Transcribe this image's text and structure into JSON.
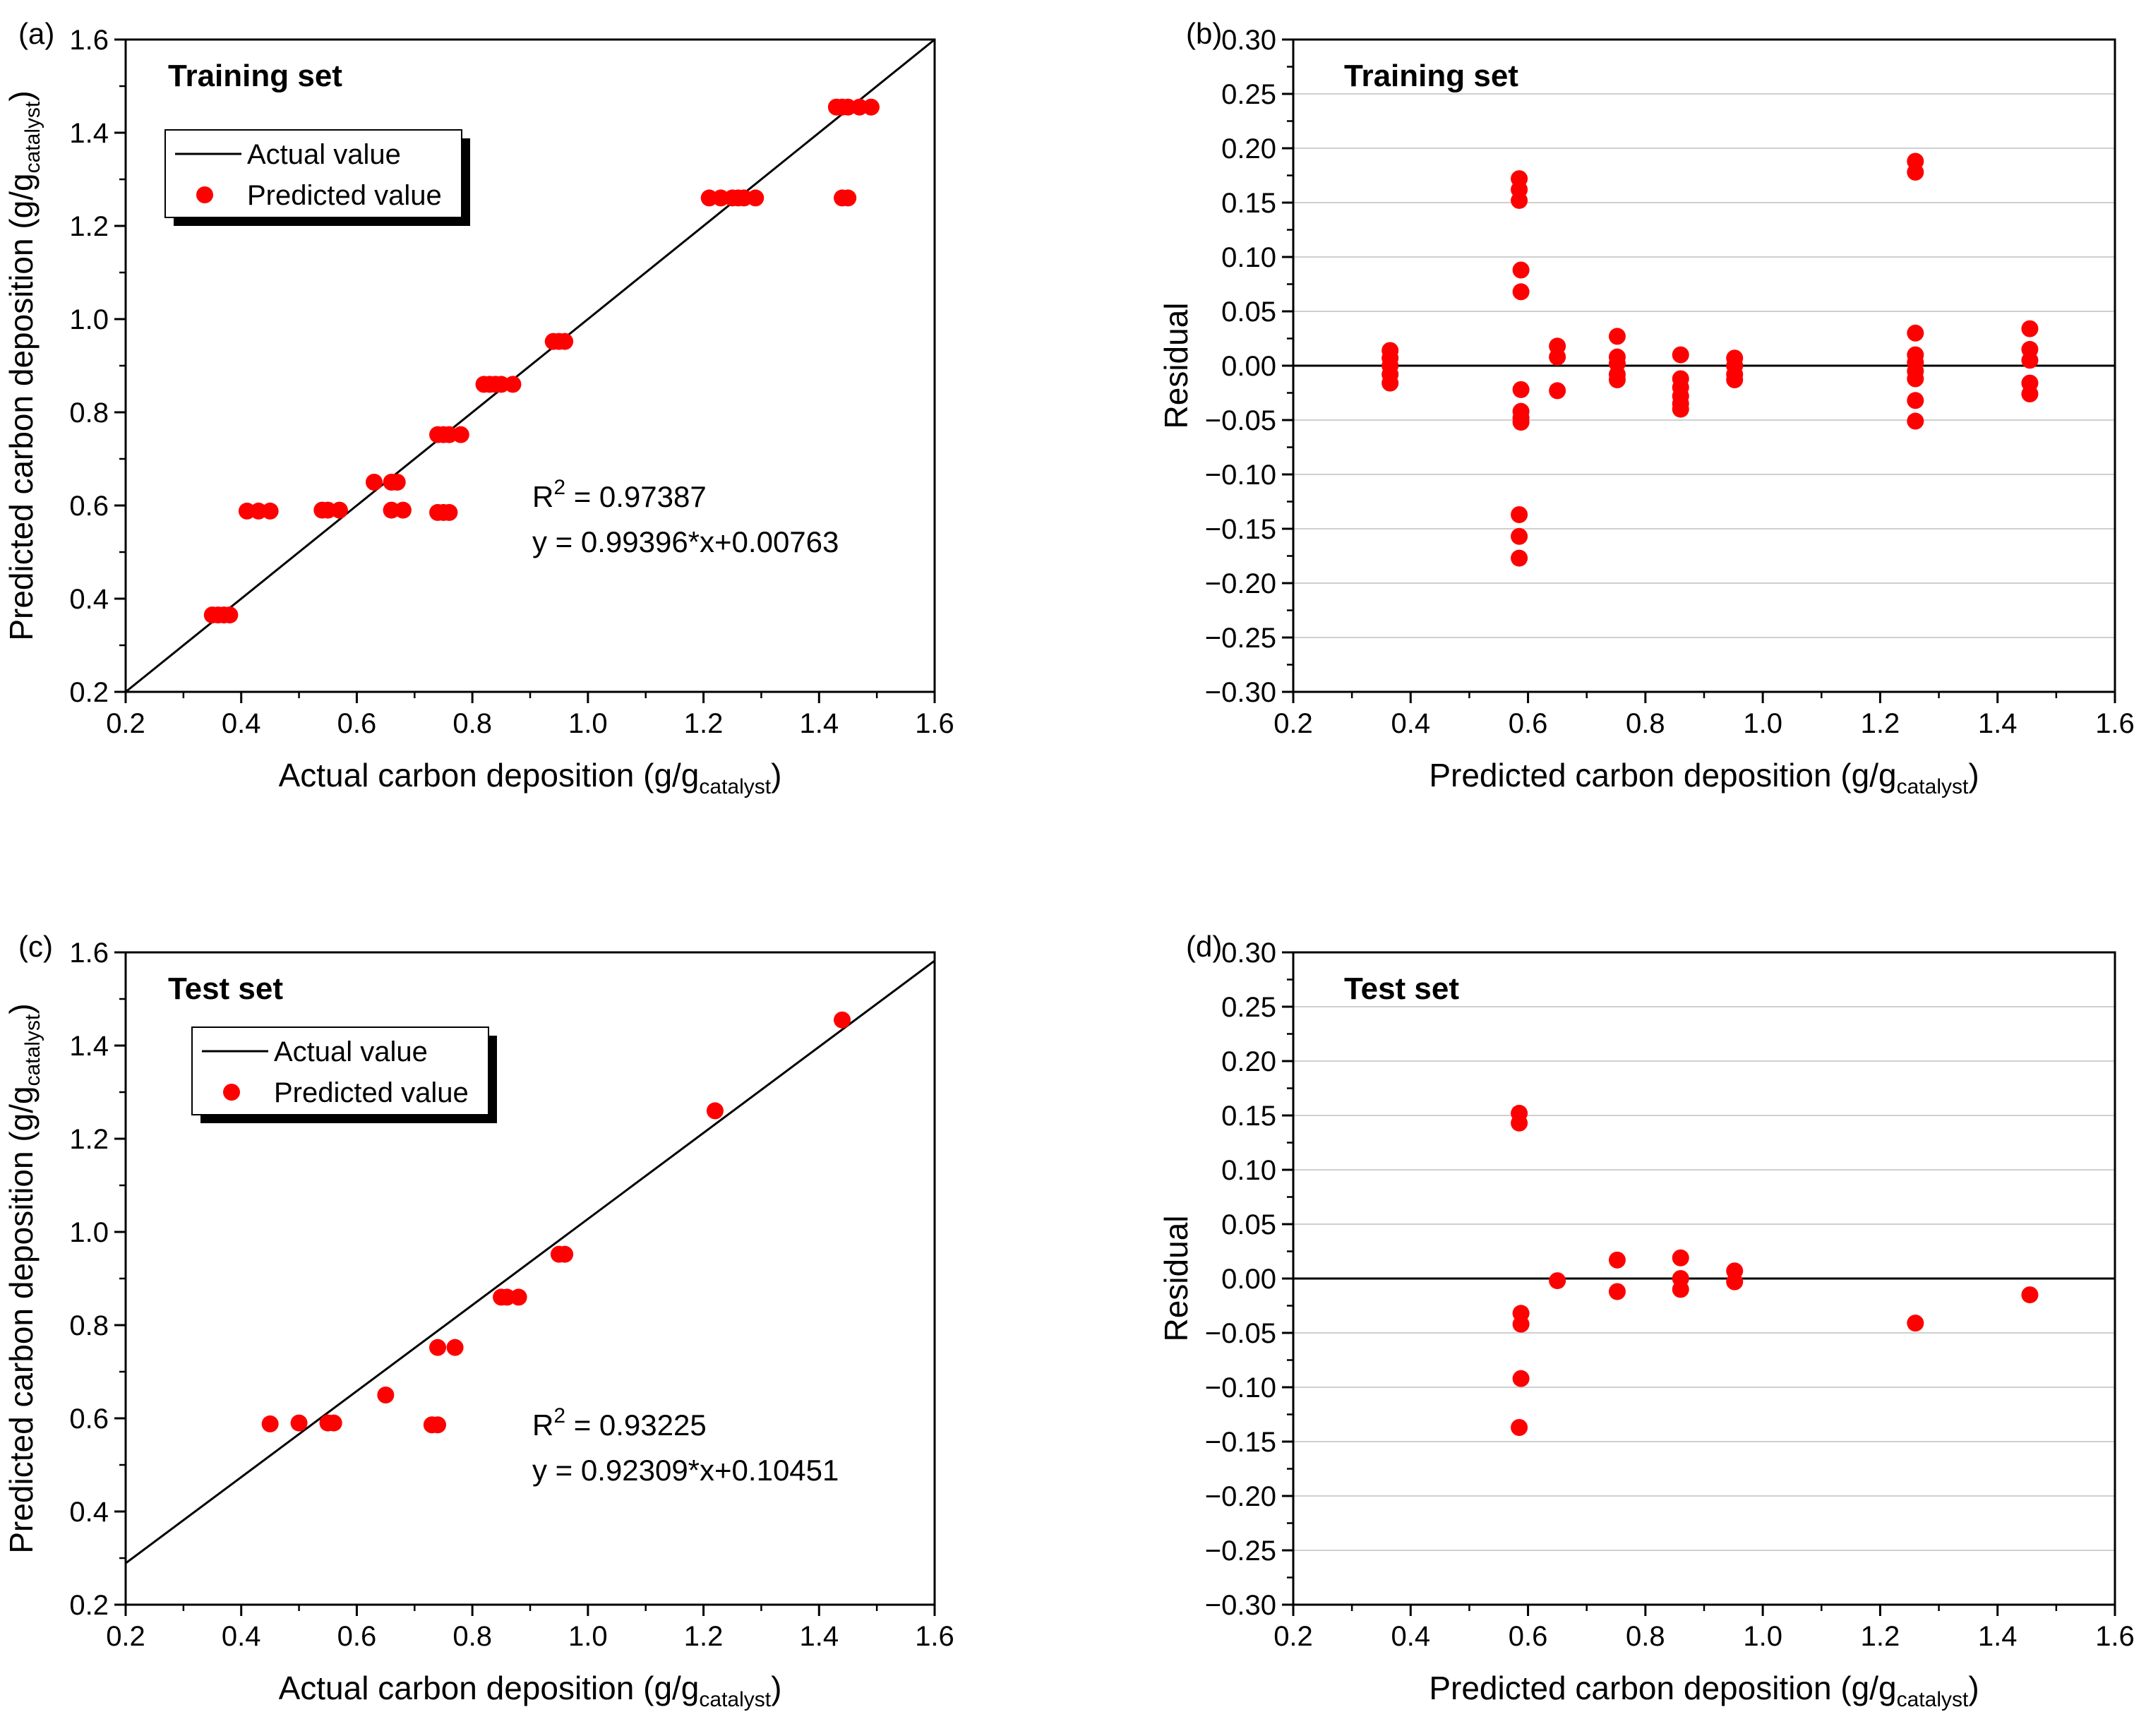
{
  "colors": {
    "marker": "#ff0000",
    "line": "#000000",
    "grid": "#cfcfcf"
  },
  "chart_data": [
    {
      "id": "a",
      "type": "scatter",
      "panel_label": "(a)",
      "title": "Training set",
      "xlabel": "Actual carbon deposition (g/g",
      "xlabel_sub": "catalyst",
      "xlabel_end": ")",
      "ylabel": "Predicted carbon deposition (g/g",
      "ylabel_sub": "catalyst",
      "ylabel_end": ")",
      "xlim": [
        0.2,
        1.6
      ],
      "ylim": [
        0.2,
        1.6
      ],
      "xticks": [
        "0.2",
        "0.4",
        "0.6",
        "0.8",
        "1.0",
        "1.2",
        "1.4",
        "1.6"
      ],
      "yticks": [
        "0.2",
        "0.4",
        "0.6",
        "0.8",
        "1.0",
        "1.2",
        "1.4",
        "1.6"
      ],
      "grid": false,
      "legend": {
        "placement": "upper-left",
        "line_label": "Actual value",
        "marker_label": "Predicted value"
      },
      "annotation": {
        "r2_prefix": "R",
        "r2_sup": "2",
        "r2_rest": " = 0.97387",
        "equation": "y = 0.99396*x+0.00763"
      },
      "reference_line": {
        "x": [
          0.2,
          1.6
        ],
        "y": [
          0.2,
          1.6
        ]
      },
      "series": [
        {
          "name": "Predicted value",
          "points": [
            [
              0.35,
              0.365
            ],
            [
              0.36,
              0.365
            ],
            [
              0.37,
              0.365
            ],
            [
              0.38,
              0.365
            ],
            [
              0.41,
              0.588
            ],
            [
              0.43,
              0.588
            ],
            [
              0.45,
              0.588
            ],
            [
              0.54,
              0.59
            ],
            [
              0.55,
              0.59
            ],
            [
              0.57,
              0.59
            ],
            [
              0.63,
              0.65
            ],
            [
              0.66,
              0.65
            ],
            [
              0.67,
              0.65
            ],
            [
              0.66,
              0.59
            ],
            [
              0.68,
              0.59
            ],
            [
              0.74,
              0.585
            ],
            [
              0.75,
              0.585
            ],
            [
              0.76,
              0.585
            ],
            [
              0.74,
              0.752
            ],
            [
              0.75,
              0.752
            ],
            [
              0.76,
              0.752
            ],
            [
              0.78,
              0.752
            ],
            [
              0.82,
              0.86
            ],
            [
              0.83,
              0.86
            ],
            [
              0.84,
              0.86
            ],
            [
              0.85,
              0.86
            ],
            [
              0.87,
              0.86
            ],
            [
              0.94,
              0.952
            ],
            [
              0.95,
              0.952
            ],
            [
              0.96,
              0.952
            ],
            [
              1.21,
              1.26
            ],
            [
              1.23,
              1.26
            ],
            [
              1.25,
              1.26
            ],
            [
              1.26,
              1.26
            ],
            [
              1.27,
              1.26
            ],
            [
              1.29,
              1.26
            ],
            [
              1.44,
              1.26
            ],
            [
              1.45,
              1.26
            ],
            [
              1.43,
              1.455
            ],
            [
              1.44,
              1.455
            ],
            [
              1.45,
              1.455
            ],
            [
              1.47,
              1.455
            ],
            [
              1.49,
              1.455
            ]
          ]
        }
      ]
    },
    {
      "id": "b",
      "type": "scatter",
      "panel_label": "(b)",
      "title": "Training set",
      "xlabel": "Predicted carbon deposition (g/g",
      "xlabel_sub": "catalyst",
      "xlabel_end": ")",
      "ylabel": "Residual",
      "ylabel_sub": "",
      "ylabel_end": "",
      "xlim": [
        0.2,
        1.6
      ],
      "ylim": [
        -0.3,
        0.3
      ],
      "xticks": [
        "0.2",
        "0.4",
        "0.6",
        "0.8",
        "1.0",
        "1.2",
        "1.4",
        "1.6"
      ],
      "yticks": [
        "-0.30",
        "-0.25",
        "-0.20",
        "-0.15",
        "-0.10",
        "-0.05",
        "0.00",
        "0.05",
        "0.10",
        "0.15",
        "0.20",
        "0.25",
        "0.30"
      ],
      "grid": true,
      "zero_line": true,
      "series": [
        {
          "name": "Residual",
          "points": [
            [
              0.365,
              0.014
            ],
            [
              0.365,
              0.007
            ],
            [
              0.365,
              0.0
            ],
            [
              0.365,
              -0.008
            ],
            [
              0.365,
              -0.016
            ],
            [
              0.585,
              0.172
            ],
            [
              0.585,
              0.162
            ],
            [
              0.585,
              0.152
            ],
            [
              0.588,
              0.088
            ],
            [
              0.588,
              0.068
            ],
            [
              0.588,
              -0.022
            ],
            [
              0.588,
              -0.042
            ],
            [
              0.588,
              -0.048
            ],
            [
              0.588,
              -0.052
            ],
            [
              0.585,
              -0.137
            ],
            [
              0.585,
              -0.157
            ],
            [
              0.585,
              -0.177
            ],
            [
              0.65,
              0.018
            ],
            [
              0.65,
              0.008
            ],
            [
              0.65,
              -0.023
            ],
            [
              0.752,
              0.027
            ],
            [
              0.752,
              0.008
            ],
            [
              0.752,
              0.002
            ],
            [
              0.752,
              -0.008
            ],
            [
              0.752,
              -0.013
            ],
            [
              0.86,
              0.01
            ],
            [
              0.86,
              -0.012
            ],
            [
              0.86,
              -0.02
            ],
            [
              0.86,
              -0.028
            ],
            [
              0.86,
              -0.035
            ],
            [
              0.86,
              -0.04
            ],
            [
              0.952,
              0.007
            ],
            [
              0.952,
              0.0
            ],
            [
              0.952,
              -0.008
            ],
            [
              0.952,
              -0.013
            ],
            [
              1.26,
              0.188
            ],
            [
              1.26,
              0.178
            ],
            [
              1.26,
              0.03
            ],
            [
              1.26,
              0.01
            ],
            [
              1.26,
              0.003
            ],
            [
              1.26,
              -0.005
            ],
            [
              1.26,
              -0.012
            ],
            [
              1.26,
              -0.032
            ],
            [
              1.26,
              -0.051
            ],
            [
              1.455,
              0.034
            ],
            [
              1.455,
              0.015
            ],
            [
              1.455,
              0.005
            ],
            [
              1.455,
              -0.016
            ],
            [
              1.455,
              -0.026
            ]
          ]
        }
      ]
    },
    {
      "id": "c",
      "type": "scatter",
      "panel_label": "(c)",
      "title": "Test set",
      "xlabel": "Actual carbon deposition (g/g",
      "xlabel_sub": "catalyst",
      "xlabel_end": ")",
      "ylabel": "Predicted carbon deposition (g/g",
      "ylabel_sub": "catalyst",
      "ylabel_end": ")",
      "xlim": [
        0.2,
        1.6
      ],
      "ylim": [
        0.2,
        1.6
      ],
      "xticks": [
        "0.2",
        "0.4",
        "0.6",
        "0.8",
        "1.0",
        "1.2",
        "1.4",
        "1.6"
      ],
      "yticks": [
        "0.2",
        "0.4",
        "0.6",
        "0.8",
        "1.0",
        "1.2",
        "1.4",
        "1.6"
      ],
      "grid": false,
      "legend": {
        "placement": "upper-left",
        "line_label": "Actual value",
        "marker_label": "Predicted value"
      },
      "annotation": {
        "r2_prefix": "R",
        "r2_sup": "2",
        "r2_rest": " = 0.93225",
        "equation": "y = 0.92309*x+0.10451"
      },
      "reference_line": {
        "x": [
          0.2,
          1.6
        ],
        "y": [
          0.289,
          1.582
        ]
      },
      "series": [
        {
          "name": "Predicted value",
          "points": [
            [
              0.45,
              0.588
            ],
            [
              0.5,
              0.59
            ],
            [
              0.55,
              0.59
            ],
            [
              0.56,
              0.59
            ],
            [
              0.65,
              0.65
            ],
            [
              0.73,
              0.586
            ],
            [
              0.74,
              0.586
            ],
            [
              0.74,
              0.752
            ],
            [
              0.77,
              0.752
            ],
            [
              0.85,
              0.86
            ],
            [
              0.86,
              0.86
            ],
            [
              0.88,
              0.86
            ],
            [
              0.95,
              0.952
            ],
            [
              0.96,
              0.952
            ],
            [
              1.22,
              1.26
            ],
            [
              1.44,
              1.455
            ]
          ]
        }
      ]
    },
    {
      "id": "d",
      "type": "scatter",
      "panel_label": "(d)",
      "title": "Test set",
      "xlabel": "Predicted carbon deposition (g/g",
      "xlabel_sub": "catalyst",
      "xlabel_end": ")",
      "ylabel": "Residual",
      "ylabel_sub": "",
      "ylabel_end": "",
      "xlim": [
        0.2,
        1.6
      ],
      "ylim": [
        -0.3,
        0.3
      ],
      "xticks": [
        "0.2",
        "0.4",
        "0.6",
        "0.8",
        "1.0",
        "1.2",
        "1.4",
        "1.6"
      ],
      "yticks": [
        "-0.30",
        "-0.25",
        "-0.20",
        "-0.15",
        "-0.10",
        "-0.05",
        "0.00",
        "0.05",
        "0.10",
        "0.15",
        "0.20",
        "0.25",
        "0.30"
      ],
      "grid": true,
      "zero_line": true,
      "series": [
        {
          "name": "Residual",
          "points": [
            [
              0.585,
              0.152
            ],
            [
              0.585,
              0.143
            ],
            [
              0.588,
              -0.032
            ],
            [
              0.588,
              -0.042
            ],
            [
              0.588,
              -0.092
            ],
            [
              0.585,
              -0.137
            ],
            [
              0.65,
              -0.002
            ],
            [
              0.752,
              0.017
            ],
            [
              0.752,
              -0.012
            ],
            [
              0.86,
              0.019
            ],
            [
              0.86,
              0.0
            ],
            [
              0.86,
              -0.01
            ],
            [
              0.952,
              0.007
            ],
            [
              0.952,
              -0.003
            ],
            [
              1.26,
              -0.041
            ],
            [
              1.455,
              -0.015
            ]
          ]
        }
      ]
    }
  ]
}
